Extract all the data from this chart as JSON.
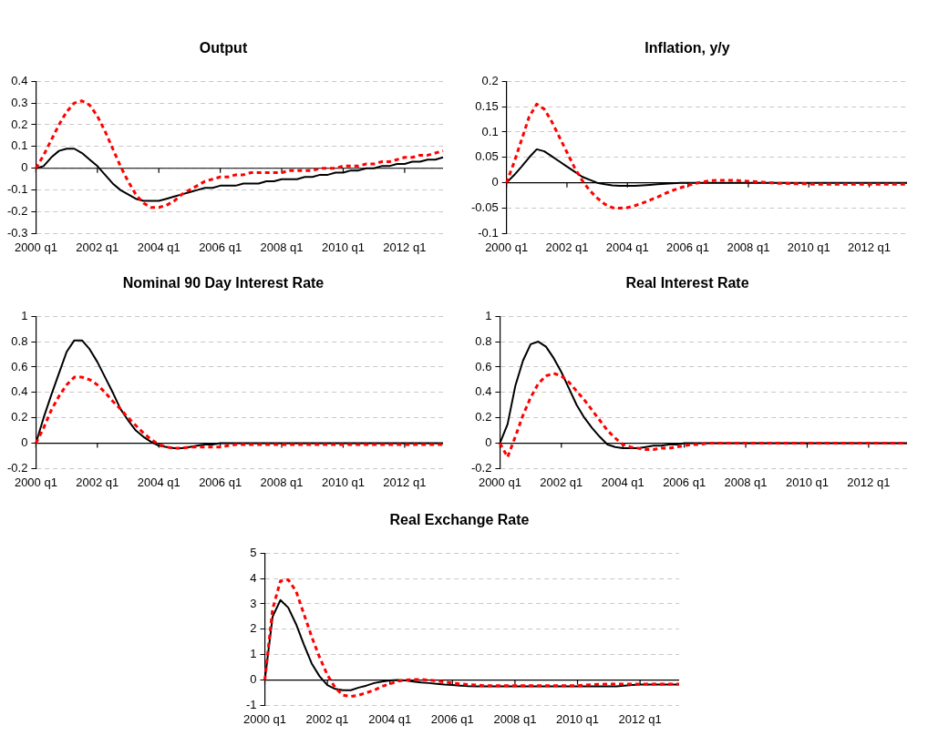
{
  "chart_data": [
    {
      "type": "line",
      "title": "Output",
      "categories": [
        "2000 q1",
        null,
        null,
        null,
        null,
        null,
        null,
        null,
        "2002 q1",
        null,
        null,
        null,
        null,
        null,
        null,
        null,
        "2004 q1",
        null,
        null,
        null,
        null,
        null,
        null,
        null,
        "2006 q1",
        null,
        null,
        null,
        null,
        null,
        null,
        null,
        "2008 q1",
        null,
        null,
        null,
        null,
        null,
        null,
        null,
        "2010 q1",
        null,
        null,
        null,
        null,
        null,
        null,
        null,
        "2012 q1",
        null,
        null,
        null,
        null,
        null
      ],
      "ylim": [
        -0.3,
        0.4
      ],
      "yticks": [
        -0.3,
        -0.2,
        -0.1,
        0,
        0.1,
        0.2,
        0.3,
        0.4
      ],
      "grid": "y",
      "legend": false,
      "marker": "none",
      "series": [
        {
          "color": "#000000",
          "line_style": "solid",
          "values": [
            0,
            0.01,
            0.05,
            0.08,
            0.09,
            0.09,
            0.07,
            0.04,
            0.01,
            -0.03,
            -0.07,
            -0.1,
            -0.12,
            -0.14,
            -0.15,
            -0.15,
            -0.15,
            -0.14,
            -0.13,
            -0.12,
            -0.11,
            -0.1,
            -0.09,
            -0.09,
            -0.08,
            -0.08,
            -0.08,
            -0.07,
            -0.07,
            -0.07,
            -0.06,
            -0.06,
            -0.05,
            -0.05,
            -0.05,
            -0.04,
            -0.04,
            -0.03,
            -0.03,
            -0.02,
            -0.02,
            -0.01,
            -0.01,
            0,
            0,
            0.01,
            0.01,
            0.02,
            0.02,
            0.03,
            0.03,
            0.04,
            0.04,
            0.05
          ]
        },
        {
          "color": "#ff0000",
          "line_style": "dashed",
          "values": [
            0,
            0.06,
            0.13,
            0.2,
            0.26,
            0.3,
            0.31,
            0.29,
            0.24,
            0.17,
            0.09,
            0.01,
            -0.06,
            -0.12,
            -0.16,
            -0.18,
            -0.18,
            -0.17,
            -0.15,
            -0.12,
            -0.1,
            -0.08,
            -0.06,
            -0.05,
            -0.04,
            -0.04,
            -0.03,
            -0.03,
            -0.02,
            -0.02,
            -0.02,
            -0.02,
            -0.02,
            -0.01,
            -0.01,
            -0.01,
            -0.01,
            0,
            0,
            0,
            0.01,
            0.01,
            0.01,
            0.02,
            0.02,
            0.03,
            0.03,
            0.04,
            0.05,
            0.05,
            0.06,
            0.06,
            0.07,
            0.08
          ]
        }
      ]
    },
    {
      "type": "line",
      "title": "Inflation, y/y",
      "categories": [
        "2000 q1",
        null,
        null,
        null,
        null,
        null,
        null,
        null,
        "2002 q1",
        null,
        null,
        null,
        null,
        null,
        null,
        null,
        "2004 q1",
        null,
        null,
        null,
        null,
        null,
        null,
        null,
        "2006 q1",
        null,
        null,
        null,
        null,
        null,
        null,
        null,
        "2008 q1",
        null,
        null,
        null,
        null,
        null,
        null,
        null,
        "2010 q1",
        null,
        null,
        null,
        null,
        null,
        null,
        null,
        "2012 q1",
        null,
        null,
        null,
        null,
        null
      ],
      "ylim": [
        -0.1,
        0.2
      ],
      "yticks": [
        -0.1,
        -0.05,
        0,
        0.05,
        0.1,
        0.15,
        0.2
      ],
      "grid": "y",
      "legend": false,
      "marker": "none",
      "series": [
        {
          "color": "#000000",
          "line_style": "solid",
          "values": [
            0,
            0.015,
            0.032,
            0.05,
            0.066,
            0.062,
            0.052,
            0.042,
            0.032,
            0.022,
            0.012,
            0.006,
            0,
            -0.003,
            -0.005,
            -0.006,
            -0.006,
            -0.006,
            -0.005,
            -0.004,
            -0.003,
            -0.002,
            -0.001,
            0,
            0,
            0,
            0,
            0,
            0,
            0,
            0,
            0,
            0,
            0,
            0,
            0,
            0,
            0,
            0,
            0,
            0,
            0,
            0,
            0,
            0,
            0,
            0,
            0,
            0,
            0,
            0,
            0,
            0,
            0
          ]
        },
        {
          "color": "#ff0000",
          "line_style": "dashed",
          "values": [
            0,
            0.04,
            0.085,
            0.13,
            0.155,
            0.145,
            0.12,
            0.09,
            0.06,
            0.03,
            0.005,
            -0.015,
            -0.03,
            -0.042,
            -0.049,
            -0.05,
            -0.049,
            -0.045,
            -0.04,
            -0.034,
            -0.028,
            -0.021,
            -0.015,
            -0.01,
            -0.005,
            -0.001,
            0.002,
            0.004,
            0.005,
            0.005,
            0.005,
            0.004,
            0.003,
            0.002,
            0.001,
            0,
            -0.001,
            -0.001,
            -0.002,
            -0.002,
            -0.002,
            -0.003,
            -0.003,
            -0.003,
            -0.003,
            -0.003,
            -0.003,
            -0.003,
            -0.003,
            -0.003,
            -0.003,
            -0.003,
            -0.003,
            -0.003
          ]
        }
      ]
    },
    {
      "type": "line",
      "title": "Nominal 90 Day Interest Rate",
      "categories": [
        "2000 q1",
        null,
        null,
        null,
        null,
        null,
        null,
        null,
        "2002 q1",
        null,
        null,
        null,
        null,
        null,
        null,
        null,
        "2004 q1",
        null,
        null,
        null,
        null,
        null,
        null,
        null,
        "2006 q1",
        null,
        null,
        null,
        null,
        null,
        null,
        null,
        "2008 q1",
        null,
        null,
        null,
        null,
        null,
        null,
        null,
        "2010 q1",
        null,
        null,
        null,
        null,
        null,
        null,
        null,
        "2012 q1",
        null,
        null,
        null,
        null,
        null
      ],
      "ylim": [
        -0.2,
        1
      ],
      "yticks": [
        -0.2,
        0,
        0.2,
        0.4,
        0.6,
        0.8,
        1
      ],
      "grid": "y",
      "legend": false,
      "marker": "none",
      "series": [
        {
          "color": "#000000",
          "line_style": "solid",
          "values": [
            0,
            0.2,
            0.38,
            0.55,
            0.72,
            0.81,
            0.81,
            0.74,
            0.64,
            0.52,
            0.4,
            0.27,
            0.18,
            0.1,
            0.05,
            0.01,
            -0.02,
            -0.03,
            -0.04,
            -0.04,
            -0.03,
            -0.02,
            -0.01,
            -0.01,
            0,
            0,
            0,
            0,
            0,
            0,
            0,
            0,
            0,
            0,
            0,
            0,
            0,
            0,
            0,
            0,
            0,
            0,
            0,
            0,
            0,
            0,
            0,
            0,
            0,
            0,
            0,
            0,
            0,
            0
          ]
        },
        {
          "color": "#ff0000",
          "line_style": "dashed",
          "values": [
            0,
            0.12,
            0.26,
            0.37,
            0.46,
            0.52,
            0.52,
            0.5,
            0.46,
            0.4,
            0.33,
            0.27,
            0.2,
            0.14,
            0.08,
            0.03,
            -0.01,
            -0.03,
            -0.04,
            -0.04,
            -0.03,
            -0.03,
            -0.03,
            -0.03,
            -0.03,
            -0.02,
            -0.01,
            -0.01,
            -0.01,
            -0.01,
            -0.01,
            -0.01,
            -0.01,
            -0.01,
            -0.01,
            -0.01,
            -0.01,
            -0.01,
            -0.01,
            -0.01,
            -0.01,
            -0.01,
            -0.01,
            -0.01,
            -0.01,
            -0.01,
            -0.01,
            -0.01,
            -0.01,
            -0.01,
            -0.01,
            -0.01,
            -0.01,
            -0.01
          ]
        }
      ]
    },
    {
      "type": "line",
      "title": "Real Interest Rate",
      "categories": [
        "2000 q1",
        null,
        null,
        null,
        null,
        null,
        null,
        null,
        "2002 q1",
        null,
        null,
        null,
        null,
        null,
        null,
        null,
        "2004 q1",
        null,
        null,
        null,
        null,
        null,
        null,
        null,
        "2006 q1",
        null,
        null,
        null,
        null,
        null,
        null,
        null,
        "2008 q1",
        null,
        null,
        null,
        null,
        null,
        null,
        null,
        "2010 q1",
        null,
        null,
        null,
        null,
        null,
        null,
        null,
        "2012 q1",
        null,
        null,
        null,
        null,
        null
      ],
      "ylim": [
        -0.2,
        1
      ],
      "yticks": [
        -0.2,
        0,
        0.2,
        0.4,
        0.6,
        0.8,
        1
      ],
      "grid": "y",
      "legend": false,
      "marker": "none",
      "series": [
        {
          "color": "#000000",
          "line_style": "solid",
          "values": [
            0,
            0.15,
            0.45,
            0.65,
            0.78,
            0.8,
            0.76,
            0.67,
            0.56,
            0.43,
            0.3,
            0.2,
            0.12,
            0.05,
            -0.01,
            -0.03,
            -0.04,
            -0.04,
            -0.04,
            -0.03,
            -0.02,
            -0.02,
            -0.01,
            -0.01,
            0,
            0,
            0,
            0,
            0,
            0,
            0,
            0,
            0,
            0,
            0,
            0,
            0,
            0,
            0,
            0,
            0,
            0,
            0,
            0,
            0,
            0,
            0,
            0,
            0,
            0,
            0,
            0,
            0,
            0
          ]
        },
        {
          "color": "#ff0000",
          "line_style": "dashed",
          "values": [
            0,
            -0.11,
            0.05,
            0.22,
            0.36,
            0.47,
            0.53,
            0.55,
            0.53,
            0.48,
            0.41,
            0.34,
            0.26,
            0.18,
            0.1,
            0.04,
            -0.01,
            -0.03,
            -0.04,
            -0.05,
            -0.05,
            -0.04,
            -0.04,
            -0.03,
            -0.02,
            -0.01,
            -0.01,
            0,
            0,
            0,
            0,
            0,
            0,
            0,
            0,
            0,
            0,
            0,
            0,
            0,
            0,
            0,
            0,
            0,
            0,
            0,
            0,
            0,
            0,
            0,
            0,
            0,
            0,
            0
          ]
        }
      ]
    },
    {
      "type": "line",
      "title": "Real Exchange Rate",
      "categories": [
        "2000 q1",
        null,
        null,
        null,
        null,
        null,
        null,
        null,
        "2002 q1",
        null,
        null,
        null,
        null,
        null,
        null,
        null,
        "2004 q1",
        null,
        null,
        null,
        null,
        null,
        null,
        null,
        "2006 q1",
        null,
        null,
        null,
        null,
        null,
        null,
        null,
        "2008 q1",
        null,
        null,
        null,
        null,
        null,
        null,
        null,
        "2010 q1",
        null,
        null,
        null,
        null,
        null,
        null,
        null,
        "2012 q1",
        null,
        null,
        null,
        null,
        null
      ],
      "ylim": [
        -1,
        5
      ],
      "yticks": [
        -1,
        0,
        1,
        2,
        3,
        4,
        5
      ],
      "grid": "y",
      "legend": false,
      "marker": "none",
      "series": [
        {
          "color": "#000000",
          "line_style": "solid",
          "values": [
            0,
            2.5,
            3.15,
            2.85,
            2.2,
            1.4,
            0.65,
            0.15,
            -0.2,
            -0.35,
            -0.4,
            -0.4,
            -0.3,
            -0.22,
            -0.12,
            -0.06,
            -0.02,
            0,
            -0.02,
            -0.06,
            -0.1,
            -0.12,
            -0.15,
            -0.18,
            -0.2,
            -0.22,
            -0.24,
            -0.25,
            -0.25,
            -0.25,
            -0.25,
            -0.25,
            -0.25,
            -0.25,
            -0.25,
            -0.25,
            -0.25,
            -0.25,
            -0.25,
            -0.25,
            -0.25,
            -0.25,
            -0.25,
            -0.25,
            -0.25,
            -0.25,
            -0.22,
            -0.2,
            -0.18,
            -0.18,
            -0.18,
            -0.18,
            -0.18,
            -0.18
          ]
        },
        {
          "color": "#ff0000",
          "line_style": "dashed",
          "values": [
            0,
            2.8,
            3.9,
            3.95,
            3.5,
            2.6,
            1.7,
            0.9,
            0.2,
            -0.3,
            -0.6,
            -0.65,
            -0.6,
            -0.5,
            -0.4,
            -0.25,
            -0.15,
            -0.05,
            0,
            0.02,
            0.02,
            0,
            -0.03,
            -0.08,
            -0.12,
            -0.15,
            -0.18,
            -0.2,
            -0.22,
            -0.22,
            -0.22,
            -0.22,
            -0.22,
            -0.22,
            -0.22,
            -0.22,
            -0.22,
            -0.22,
            -0.22,
            -0.22,
            -0.22,
            -0.2,
            -0.18,
            -0.17,
            -0.16,
            -0.16,
            -0.16,
            -0.16,
            -0.16,
            -0.16,
            -0.16,
            -0.16,
            -0.16,
            -0.16
          ]
        }
      ]
    }
  ]
}
